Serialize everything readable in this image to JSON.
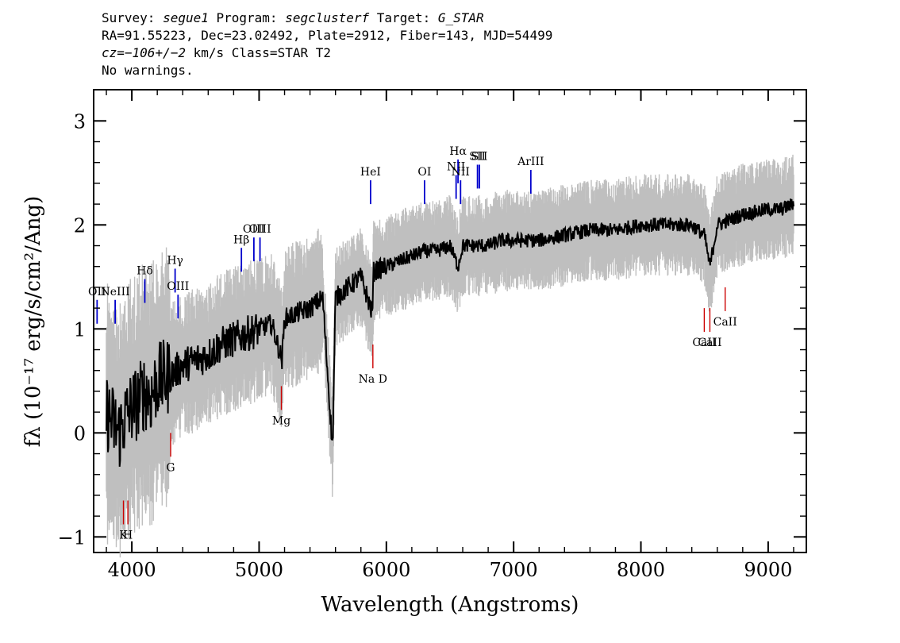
{
  "header": {
    "line1": {
      "survey_label": "Survey: ",
      "survey": "segue1",
      "program_label": " Program: ",
      "program": "segclusterf",
      "target_label": " Target: ",
      "target": "G_STAR"
    },
    "line2": "RA=91.55223, Dec=23.02492, Plate=2912, Fiber=143, MJD=54499",
    "line3": {
      "cz": "cz=",
      "cz_value": "−106+/−2",
      "rest": " km/s Class=STAR T2"
    },
    "line4": "No warnings."
  },
  "chart_data": {
    "type": "line",
    "xlabel": "Wavelength (Angstroms)",
    "ylabel": "fλ (10⁻¹⁷ erg/s/cm²/Ang)",
    "xlim": [
      3700,
      9300
    ],
    "ylim": [
      -1.15,
      3.3
    ],
    "x_ticks": [
      4000,
      5000,
      6000,
      7000,
      8000,
      9000
    ],
    "y_ticks": [
      -1,
      0,
      1,
      2,
      3
    ],
    "grid": false,
    "colors": {
      "flux": "#000000",
      "error_band": "#bfbfbf",
      "emission_lines": "#0000cc",
      "absorption_lines": "#cc0000"
    },
    "series": [
      {
        "role": "flux",
        "x": [
          3800,
          3850,
          3900,
          3950,
          4000,
          4050,
          4100,
          4150,
          4200,
          4300,
          4400,
          4500,
          4600,
          4700,
          4800,
          4900,
          5000,
          5100,
          5180,
          5200,
          5300,
          5400,
          5500,
          5577,
          5600,
          5700,
          5800,
          5890,
          5900,
          6000,
          6100,
          6200,
          6300,
          6400,
          6500,
          6563,
          6600,
          6700,
          6800,
          6900,
          7000,
          7200,
          7400,
          7600,
          7800,
          8000,
          8200,
          8400,
          8500,
          8542,
          8600,
          8800,
          9000,
          9100,
          9200
        ],
        "y": [
          0.2,
          0.1,
          0.0,
          0.15,
          0.25,
          0.3,
          0.4,
          0.35,
          0.5,
          0.55,
          0.65,
          0.7,
          0.75,
          0.85,
          0.9,
          0.95,
          1.0,
          1.05,
          0.7,
          1.1,
          1.15,
          1.2,
          1.3,
          -0.15,
          1.3,
          1.4,
          1.5,
          1.15,
          1.55,
          1.6,
          1.65,
          1.7,
          1.75,
          1.75,
          1.8,
          1.6,
          1.8,
          1.8,
          1.8,
          1.85,
          1.85,
          1.85,
          1.9,
          1.95,
          1.95,
          2.0,
          2.0,
          2.0,
          1.9,
          1.6,
          2.0,
          2.1,
          2.15,
          2.15,
          2.2
        ]
      }
    ],
    "emission_lines": [
      {
        "label": "OII",
        "x": 3727,
        "y": 1.05
      },
      {
        "label": "NeIII",
        "x": 3869,
        "y": 1.05
      },
      {
        "label": "Hδ",
        "x": 4102,
        "y": 1.25
      },
      {
        "label": "Hγ",
        "x": 4340,
        "y": 1.35
      },
      {
        "label": "OIII",
        "x": 4363,
        "y": 1.1
      },
      {
        "label": "Hβ",
        "x": 4861,
        "y": 1.55
      },
      {
        "label": "OIII",
        "x": 4959,
        "y": 1.65
      },
      {
        "label": "OIII",
        "x": 5007,
        "y": 1.65
      },
      {
        "label": "HeI",
        "x": 5876,
        "y": 2.2
      },
      {
        "label": "OI",
        "x": 6300,
        "y": 2.2
      },
      {
        "label": "NII",
        "x": 6548,
        "y": 2.25
      },
      {
        "label": "Hα",
        "x": 6563,
        "y": 2.4
      },
      {
        "label": "NII",
        "x": 6583,
        "y": 2.2
      },
      {
        "label": "SII",
        "x": 6716,
        "y": 2.35
      },
      {
        "label": "SII",
        "x": 6731,
        "y": 2.35
      },
      {
        "label": "ArIII",
        "x": 7135,
        "y": 2.3
      }
    ],
    "absorption_lines": [
      {
        "label": "K",
        "x": 3934,
        "y": -0.65
      },
      {
        "label": "H",
        "x": 3969,
        "y": -0.65
      },
      {
        "label": "G",
        "x": 4305,
        "y": 0.0
      },
      {
        "label": "Mg",
        "x": 5175,
        "y": 0.45
      },
      {
        "label": "Na D",
        "x": 5894,
        "y": 0.85
      },
      {
        "label": "CaII",
        "x": 8498,
        "y": 1.2
      },
      {
        "label": "CaII",
        "x": 8542,
        "y": 1.2
      },
      {
        "label": "CaII",
        "x": 8662,
        "y": 1.4
      }
    ]
  }
}
